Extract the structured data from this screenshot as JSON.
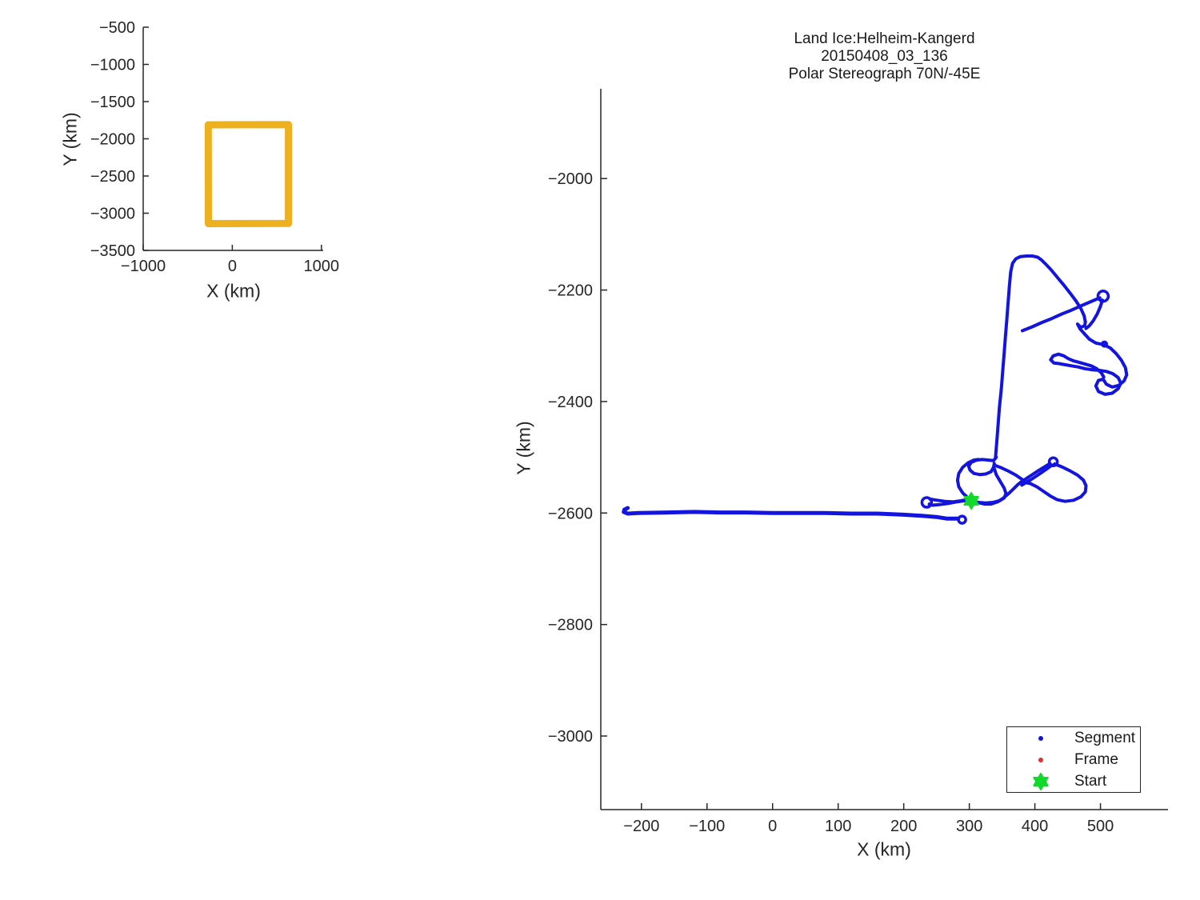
{
  "figure": {
    "background": "#FFFFFF",
    "text_color": "#262626",
    "axis_color": "#262626"
  },
  "chart_data": [
    {
      "id": "inset",
      "type": "line",
      "title": "",
      "xlabel": "X (km)",
      "ylabel": "Y (km)",
      "xlim": [
        -1000,
        1020
      ],
      "ylim": [
        -3500,
        -500
      ],
      "xticks": [
        -1000,
        0,
        1000
      ],
      "yticks": [
        -500,
        -1000,
        -1500,
        -2000,
        -2500,
        -3000,
        -3500
      ],
      "grid": false,
      "series": [
        {
          "name": "coverage-box",
          "color": "#EDB120",
          "line_width": 9,
          "points": [
            [
              -270,
              -1812
            ],
            [
              630,
              -1810
            ],
            [
              630,
              -3138
            ],
            [
              -268,
              -3140
            ],
            [
              -270,
              -1812
            ]
          ]
        }
      ]
    },
    {
      "id": "main",
      "type": "line",
      "title_lines": [
        "Land Ice:Helheim-Kangerd",
        "20150408_03_136",
        "Polar Stereograph 70N/-45E"
      ],
      "xlabel": "X (km)",
      "ylabel": "Y (km)",
      "xlim": [
        -262,
        603
      ],
      "ylim": [
        -3132,
        -1839
      ],
      "xticks": [
        -200,
        -100,
        0,
        100,
        200,
        300,
        400,
        500
      ],
      "yticks": [
        -2000,
        -2200,
        -2400,
        -2600,
        -2800,
        -3000
      ],
      "grid": false,
      "track_color": "#1414E0",
      "frame_color": "#E03030",
      "start_color": "#12D92B",
      "start_point": [
        303,
        -2578
      ],
      "knot_point": [
        506,
        -2297
      ],
      "circles": [
        {
          "name": "west-end-circle",
          "c": [
            289,
            -2612
          ],
          "r": 4.5
        },
        {
          "name": "turnaround-circle",
          "c": [
            235,
            -2581
          ],
          "r": 6
        },
        {
          "name": "cluster-ne-circle",
          "c": [
            428,
            -2508
          ],
          "r": 5
        },
        {
          "name": "upper-ne-circle",
          "c": [
            504,
            -2211
          ],
          "r": 6.5
        }
      ],
      "strands": [
        {
          "name": "west-transit",
          "width": 5,
          "points": [
            [
              -221,
              -2591
            ],
            [
              -226,
              -2594
            ],
            [
              -227,
              -2598
            ],
            [
              -221,
              -2601
            ],
            [
              -205,
              -2600
            ],
            [
              -160,
              -2599
            ],
            [
              -120,
              -2598
            ],
            [
              -80,
              -2599
            ],
            [
              -40,
              -2599
            ],
            [
              0,
              -2600
            ],
            [
              40,
              -2600
            ],
            [
              80,
              -2600
            ],
            [
              120,
              -2601
            ],
            [
              160,
              -2601
            ],
            [
              200,
              -2603
            ],
            [
              228,
              -2605
            ],
            [
              250,
              -2607
            ],
            [
              266,
              -2610
            ],
            [
              283,
              -2610
            ]
          ]
        },
        {
          "name": "turn-out",
          "width": 4,
          "points": [
            [
              303,
              -2577
            ],
            [
              292,
              -2578
            ],
            [
              280,
              -2580
            ],
            [
              267,
              -2583
            ],
            [
              254,
              -2585
            ],
            [
              244,
              -2586
            ],
            [
              239,
              -2584
            ]
          ]
        },
        {
          "name": "turn-back",
          "width": 4,
          "points": [
            [
              240,
              -2575
            ],
            [
              251,
              -2577
            ],
            [
              263,
              -2579
            ],
            [
              275,
              -2580
            ],
            [
              287,
              -2578
            ],
            [
              296,
              -2576
            ],
            [
              303,
              -2577
            ]
          ]
        },
        {
          "name": "start-east",
          "width": 4,
          "points": [
            [
              303,
              -2578
            ],
            [
              313,
              -2581
            ],
            [
              323,
              -2584
            ],
            [
              333,
              -2584
            ],
            [
              343,
              -2580
            ],
            [
              352,
              -2573
            ],
            [
              360,
              -2565
            ],
            [
              368,
              -2556
            ],
            [
              374,
              -2549
            ],
            [
              378,
              -2545
            ]
          ]
        },
        {
          "name": "diagonal-a",
          "width": 4,
          "points": [
            [
              378,
              -2545
            ],
            [
              391,
              -2535
            ],
            [
              404,
              -2525
            ],
            [
              415,
              -2517
            ],
            [
              423,
              -2511
            ]
          ]
        },
        {
          "name": "diagonal-b",
          "width": 4,
          "points": [
            [
              380,
              -2550
            ],
            [
              394,
              -2540
            ],
            [
              407,
              -2530
            ],
            [
              418,
              -2521
            ],
            [
              426,
              -2514
            ]
          ]
        },
        {
          "name": "right-loop",
          "width": 4,
          "points": [
            [
              430,
              -2512
            ],
            [
              441,
              -2517
            ],
            [
              453,
              -2524
            ],
            [
              465,
              -2532
            ],
            [
              474,
              -2541
            ],
            [
              478,
              -2551
            ],
            [
              477,
              -2562
            ],
            [
              470,
              -2571
            ],
            [
              459,
              -2577
            ],
            [
              446,
              -2579
            ],
            [
              434,
              -2576
            ],
            [
              423,
              -2569
            ],
            [
              413,
              -2561
            ],
            [
              403,
              -2553
            ],
            [
              393,
              -2547
            ],
            [
              384,
              -2545
            ],
            [
              378,
              -2545
            ]
          ]
        },
        {
          "name": "cluster-left-loop",
          "width": 4,
          "points": [
            [
              341,
              -2500
            ],
            [
              337,
              -2506
            ],
            [
              329,
              -2505
            ],
            [
              320,
              -2504
            ],
            [
              311,
              -2505
            ],
            [
              303,
              -2509
            ],
            [
              299,
              -2516
            ],
            [
              301,
              -2523
            ],
            [
              307,
              -2529
            ],
            [
              316,
              -2531
            ],
            [
              325,
              -2530
            ],
            [
              333,
              -2526
            ],
            [
              337,
              -2518
            ],
            [
              338,
              -2511
            ]
          ]
        },
        {
          "name": "cluster-down",
          "width": 4,
          "points": [
            [
              338,
              -2520
            ],
            [
              341,
              -2531
            ],
            [
              347,
              -2543
            ],
            [
              353,
              -2555
            ],
            [
              356,
              -2565
            ],
            [
              353,
              -2573
            ],
            [
              346,
              -2578
            ],
            [
              336,
              -2581
            ],
            [
              325,
              -2582
            ],
            [
              314,
              -2581
            ],
            [
              306,
              -2579
            ],
            [
              303,
              -2578
            ]
          ]
        },
        {
          "name": "cluster-upleft",
          "width": 4,
          "points": [
            [
              298,
              -2573
            ],
            [
              290,
              -2564
            ],
            [
              284,
              -2553
            ],
            [
              282,
              -2541
            ],
            [
              284,
              -2529
            ],
            [
              290,
              -2518
            ],
            [
              298,
              -2510
            ],
            [
              307,
              -2505
            ],
            [
              314,
              -2504
            ]
          ]
        },
        {
          "name": "cluster-bridge",
          "width": 4,
          "points": [
            [
              338,
              -2514
            ],
            [
              349,
              -2519
            ],
            [
              360,
              -2525
            ],
            [
              371,
              -2532
            ],
            [
              381,
              -2540
            ],
            [
              388,
              -2545
            ]
          ]
        },
        {
          "name": "north-line-and-blob",
          "width": 4,
          "points": [
            [
              340,
              -2500
            ],
            [
              342,
              -2470
            ],
            [
              344,
              -2440
            ],
            [
              346,
              -2410
            ],
            [
              349,
              -2375
            ],
            [
              351,
              -2345
            ],
            [
              353,
              -2315
            ],
            [
              355,
              -2285
            ],
            [
              357,
              -2255
            ],
            [
              359,
              -2225
            ],
            [
              361,
              -2195
            ],
            [
              363,
              -2168
            ],
            [
              366,
              -2152
            ],
            [
              371,
              -2144
            ],
            [
              378,
              -2140
            ],
            [
              387,
              -2139
            ],
            [
              396,
              -2139
            ],
            [
              404,
              -2141
            ],
            [
              410,
              -2146
            ],
            [
              417,
              -2154
            ],
            [
              425,
              -2164
            ],
            [
              434,
              -2177
            ],
            [
              444,
              -2191
            ],
            [
              454,
              -2206
            ],
            [
              463,
              -2220
            ],
            [
              470,
              -2233
            ],
            [
              475,
              -2246
            ],
            [
              477,
              -2257
            ],
            [
              476,
              -2264
            ],
            [
              470,
              -2267
            ],
            [
              465,
              -2261
            ],
            [
              469,
              -2270
            ],
            [
              476,
              -2279
            ],
            [
              483,
              -2288
            ],
            [
              493,
              -2295
            ],
            [
              505,
              -2298
            ],
            [
              515,
              -2304
            ],
            [
              524,
              -2314
            ],
            [
              532,
              -2326
            ],
            [
              538,
              -2339
            ],
            [
              540,
              -2352
            ],
            [
              536,
              -2363
            ],
            [
              528,
              -2371
            ],
            [
              518,
              -2374
            ],
            [
              509,
              -2369
            ],
            [
              504,
              -2360
            ],
            [
              497,
              -2362
            ],
            [
              493,
              -2372
            ],
            [
              497,
              -2382
            ],
            [
              507,
              -2387
            ],
            [
              518,
              -2385
            ],
            [
              527,
              -2377
            ],
            [
              531,
              -2367
            ],
            [
              527,
              -2357
            ],
            [
              519,
              -2350
            ],
            [
              509,
              -2346
            ],
            [
              498,
              -2344
            ],
            [
              487,
              -2343
            ],
            [
              476,
              -2341
            ],
            [
              466,
              -2338
            ],
            [
              456,
              -2336
            ],
            [
              446,
              -2334
            ],
            [
              437,
              -2332
            ],
            [
              429,
              -2331
            ],
            [
              424,
              -2325
            ],
            [
              428,
              -2318
            ],
            [
              436,
              -2315
            ],
            [
              444,
              -2318
            ],
            [
              451,
              -2323
            ],
            [
              459,
              -2327
            ],
            [
              468,
              -2330
            ],
            [
              477,
              -2333
            ],
            [
              486,
              -2336
            ],
            [
              494,
              -2341
            ],
            [
              501,
              -2348
            ],
            [
              505,
              -2356
            ]
          ]
        },
        {
          "name": "crossing-line",
          "width": 4,
          "points": [
            [
              381,
              -2273
            ],
            [
              396,
              -2266
            ],
            [
              411,
              -2258
            ],
            [
              426,
              -2251
            ],
            [
              441,
              -2243
            ],
            [
              456,
              -2236
            ],
            [
              471,
              -2228
            ],
            [
              483,
              -2222
            ],
            [
              493,
              -2217
            ],
            [
              499,
              -2214
            ]
          ]
        },
        {
          "name": "ne-descent",
          "width": 4,
          "points": [
            [
              503,
              -2218
            ],
            [
              500,
              -2229
            ],
            [
              495,
              -2243
            ],
            [
              489,
              -2255
            ],
            [
              483,
              -2264
            ],
            [
              478,
              -2269
            ]
          ]
        }
      ],
      "legend": {
        "items": [
          {
            "label": "Segment",
            "marker": "dot",
            "color": "#1414E0"
          },
          {
            "label": "Frame",
            "marker": "dot",
            "color": "#E03030"
          },
          {
            "label": "Start",
            "marker": "hexagram",
            "color": "#12D92B"
          }
        ]
      }
    }
  ]
}
